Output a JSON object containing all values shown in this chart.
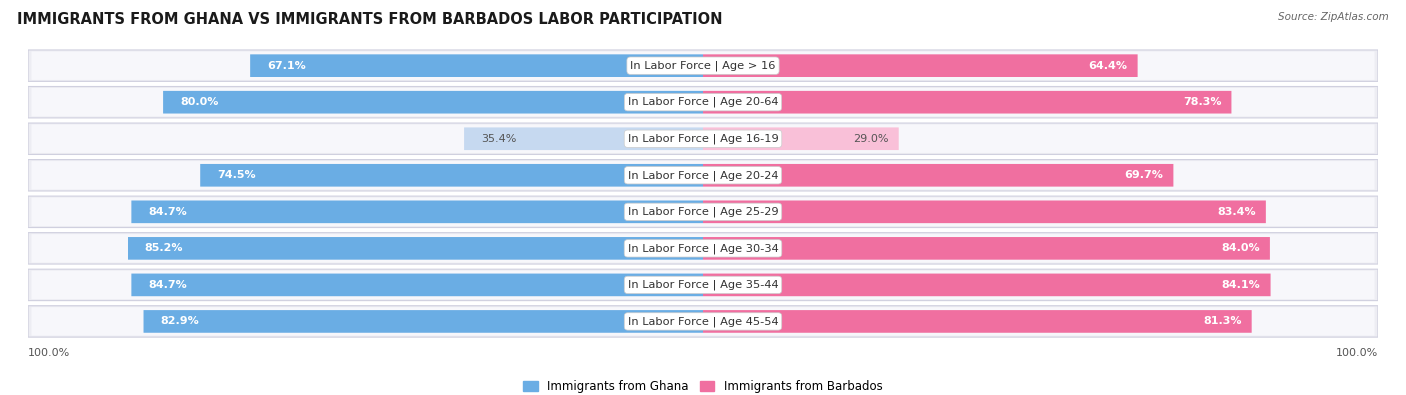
{
  "title": "IMMIGRANTS FROM GHANA VS IMMIGRANTS FROM BARBADOS LABOR PARTICIPATION",
  "source": "Source: ZipAtlas.com",
  "categories": [
    "In Labor Force | Age > 16",
    "In Labor Force | Age 20-64",
    "In Labor Force | Age 16-19",
    "In Labor Force | Age 20-24",
    "In Labor Force | Age 25-29",
    "In Labor Force | Age 30-34",
    "In Labor Force | Age 35-44",
    "In Labor Force | Age 45-54"
  ],
  "ghana_values": [
    67.1,
    80.0,
    35.4,
    74.5,
    84.7,
    85.2,
    84.7,
    82.9
  ],
  "barbados_values": [
    64.4,
    78.3,
    29.0,
    69.7,
    83.4,
    84.0,
    84.1,
    81.3
  ],
  "ghana_color": "#6aade4",
  "ghana_color_light": "#c6d9f0",
  "barbados_color": "#f06fa0",
  "barbados_color_light": "#f9c0d8",
  "row_bg_color": "#e8e8f0",
  "row_bg_inner": "#f5f5fa",
  "max_value": 100.0,
  "legend_ghana": "Immigrants from Ghana",
  "legend_barbados": "Immigrants from Barbados",
  "title_fontsize": 10.5,
  "label_fontsize": 8.2,
  "value_fontsize": 8.0
}
